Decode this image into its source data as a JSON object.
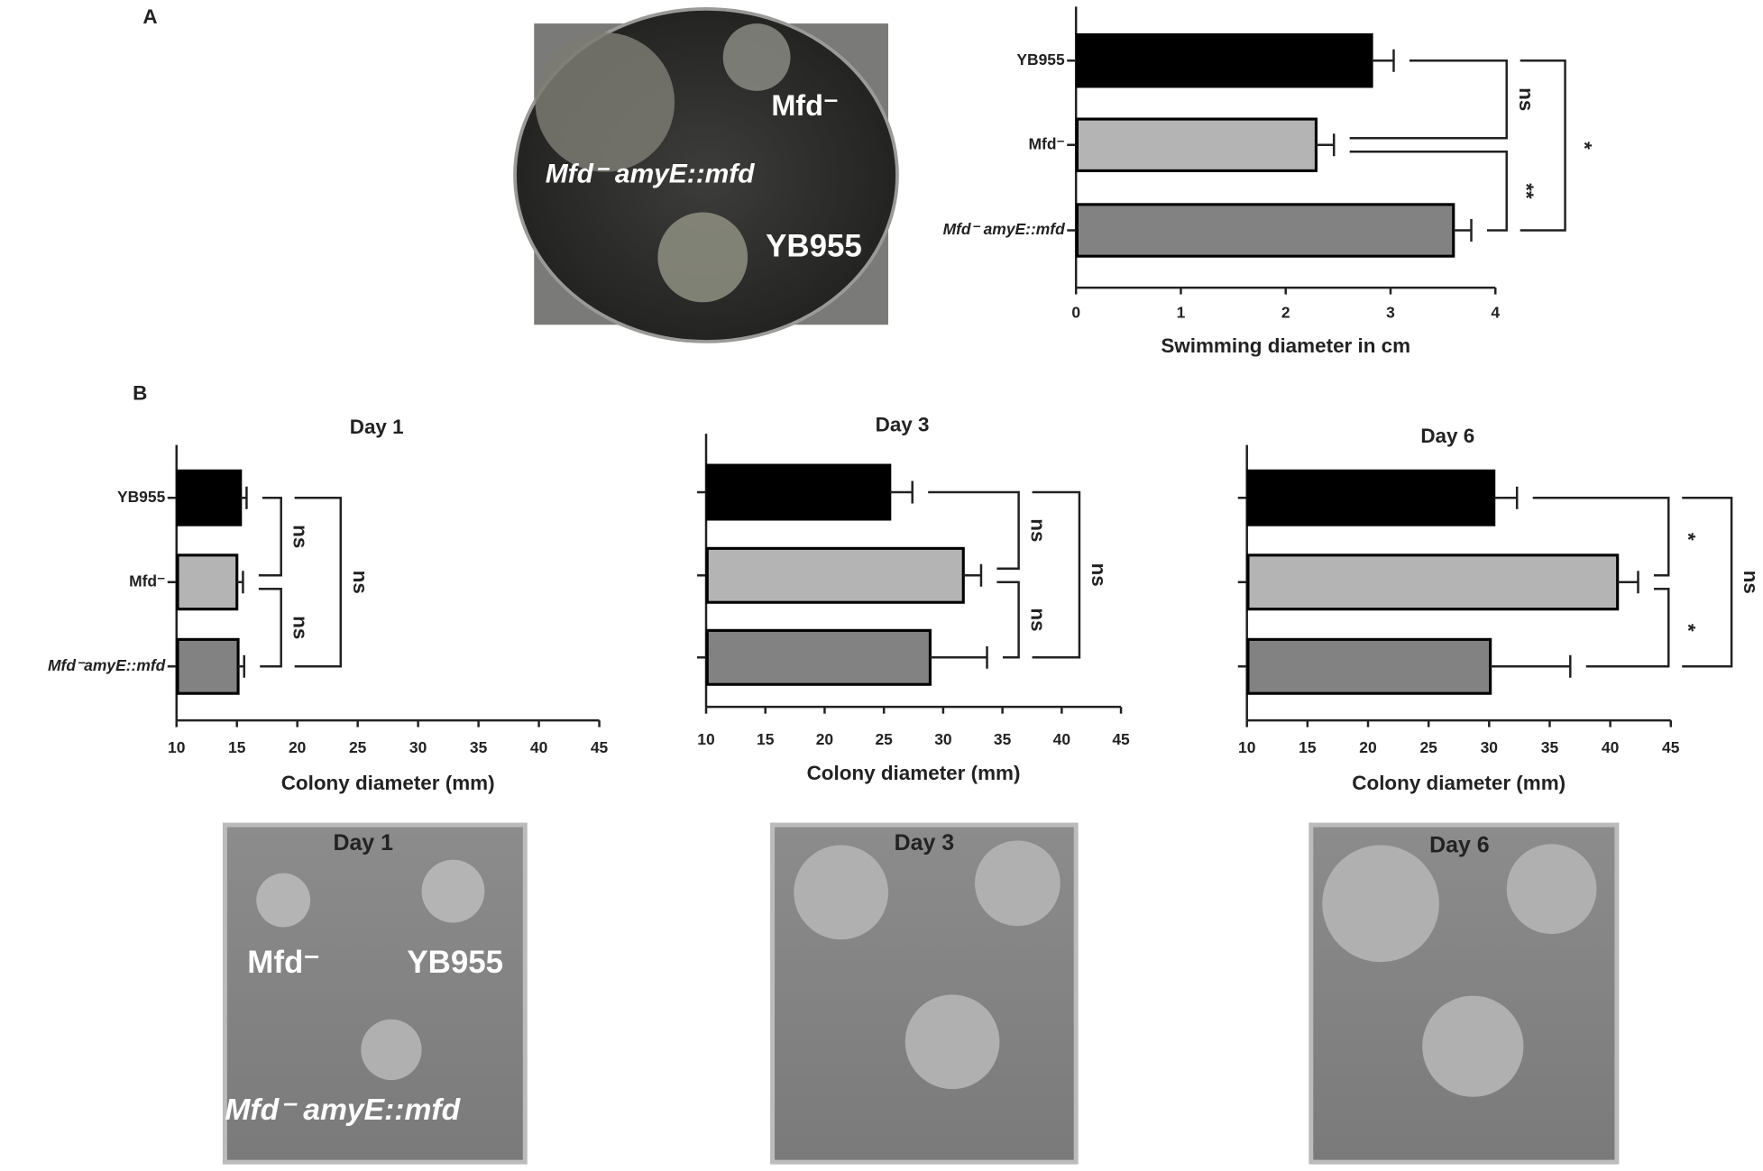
{
  "panel_labels": [
    "A",
    "B"
  ],
  "chart_data": [
    {
      "type": "bar",
      "orientation": "horizontal",
      "x_label": "Swimming diameter in cm",
      "categories": [
        "YB955",
        "Mfd⁻",
        "Mfd⁻ amyE::mfd"
      ],
      "values": [
        2.82,
        2.29,
        3.6
      ],
      "errors": [
        0.21,
        0.17,
        0.17
      ],
      "colors": [
        "#000000",
        "#b4b4b4",
        "#828282"
      ],
      "xlim": [
        0,
        4
      ],
      "xticks": [
        0,
        1,
        2,
        3,
        4
      ],
      "annotations": [
        {
          "label": "ns",
          "between": [
            0,
            1
          ]
        },
        {
          "label": "**",
          "between": [
            1,
            2
          ]
        },
        {
          "label": "*",
          "between": [
            0,
            2
          ]
        }
      ]
    },
    {
      "type": "bar",
      "orientation": "horizontal",
      "title": "Day 1",
      "x_label": "Colony diameter (mm)",
      "categories": [
        "YB955",
        "Mfd⁻",
        "Mfd⁻amyE::mfd"
      ],
      "values": [
        15.3,
        15.0,
        15.1
      ],
      "errors": [
        0.5,
        0.5,
        0.5
      ],
      "colors": [
        "#000000",
        "#b4b4b4",
        "#828282"
      ],
      "xlim": [
        10,
        45
      ],
      "xticks": [
        10,
        15,
        20,
        25,
        30,
        35,
        40,
        45
      ],
      "annotations": [
        {
          "label": "ns",
          "between": [
            0,
            1
          ]
        },
        {
          "label": "ns",
          "between": [
            1,
            2
          ]
        },
        {
          "label": "ns",
          "between": [
            0,
            2
          ]
        }
      ]
    },
    {
      "type": "bar",
      "orientation": "horizontal",
      "title": "Day 3",
      "x_label": "Colony diameter (mm)",
      "values": [
        25.5,
        31.7,
        28.9
      ],
      "errors": [
        1.9,
        1.5,
        4.8
      ],
      "colors": [
        "#000000",
        "#b4b4b4",
        "#828282"
      ],
      "xlim": [
        10,
        45
      ],
      "xticks": [
        10,
        15,
        20,
        25,
        30,
        35,
        40,
        45
      ],
      "annotations": [
        {
          "label": "ns",
          "between": [
            0,
            1
          ]
        },
        {
          "label": "ns",
          "between": [
            1,
            2
          ]
        },
        {
          "label": "ns",
          "between": [
            0,
            2
          ]
        }
      ]
    },
    {
      "type": "bar",
      "orientation": "horizontal",
      "title": "Day 6",
      "x_label": "Colony diameter (mm)",
      "values": [
        30.4,
        40.6,
        30.1
      ],
      "errors": [
        1.9,
        1.7,
        6.6
      ],
      "colors": [
        "#000000",
        "#b4b4b4",
        "#828282"
      ],
      "xlim": [
        10,
        45
      ],
      "xticks": [
        10,
        15,
        20,
        25,
        30,
        35,
        40,
        45
      ],
      "annotations": [
        {
          "label": "*",
          "between": [
            0,
            1
          ]
        },
        {
          "label": "*",
          "between": [
            1,
            2
          ]
        },
        {
          "label": "ns",
          "between": [
            0,
            2
          ]
        }
      ]
    }
  ],
  "photos": [
    {
      "labels": [
        "Mfd⁻",
        "Mfd⁻ amyE::mfd",
        "YB955"
      ]
    },
    {
      "labels": [
        "Day 1",
        "Mfd⁻",
        "YB955",
        "Mfd⁻ amyE::mfd"
      ]
    },
    {
      "labels": [
        "Day 3"
      ]
    },
    {
      "labels": [
        "Day 6"
      ]
    }
  ]
}
